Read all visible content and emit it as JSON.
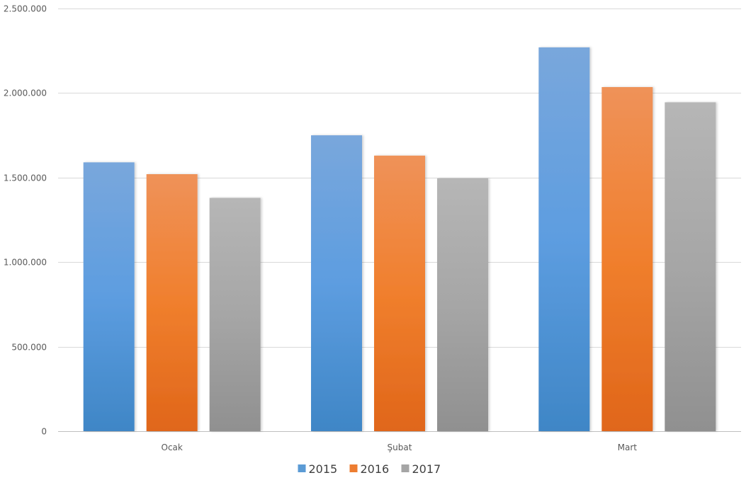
{
  "chart_data": {
    "type": "bar",
    "categories": [
      "Ocak",
      "Şubat",
      "Mart"
    ],
    "series": [
      {
        "name": "2015",
        "values": [
          1590000,
          1750000,
          2270000
        ],
        "color": "#5b9bd5"
      },
      {
        "name": "2016",
        "values": [
          1520000,
          1630000,
          2035000
        ],
        "color": "#ed7d31"
      },
      {
        "name": "2017",
        "values": [
          1380000,
          1495000,
          1945000
        ],
        "color": "#a5a5a5"
      }
    ],
    "ylim": [
      0,
      2500000
    ],
    "yticks": [
      0,
      500000,
      1000000,
      1500000,
      2000000,
      2500000
    ],
    "ytick_labels": [
      "0",
      "500.000",
      "1.000.000",
      "1.500.000",
      "2.000.000",
      "2.500.000"
    ],
    "grid": true,
    "legend_position": "bottom"
  }
}
